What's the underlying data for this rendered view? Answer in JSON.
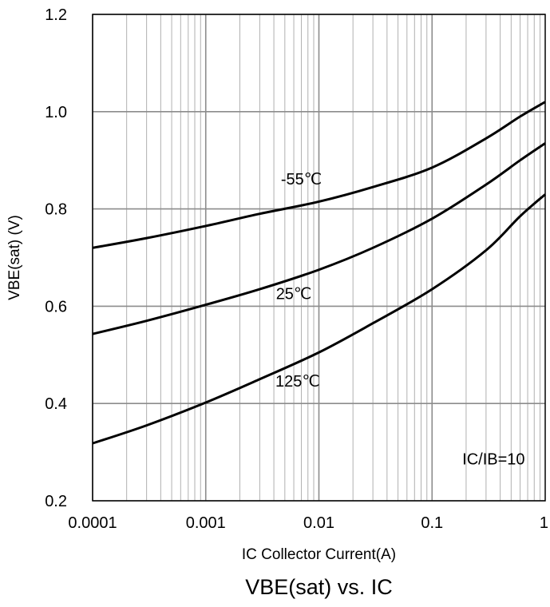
{
  "chart_data": {
    "type": "line",
    "title": "VBE(sat) vs. IC",
    "xlabel": "IC Collector Current(A)",
    "ylabel": "VBE(sat) (V)",
    "x_scale": "log",
    "xlim": [
      0.0001,
      1
    ],
    "ylim": [
      0.2,
      1.2
    ],
    "grid": true,
    "x_ticks": [
      "0.0001",
      "0.001",
      "0.01",
      "0.1",
      "1"
    ],
    "y_ticks": [
      "0.2",
      "0.4",
      "0.6",
      "0.8",
      "1.0",
      "1.2"
    ],
    "series": [
      {
        "name": "-55℃",
        "x": [
          0.0001,
          0.0003,
          0.001,
          0.003,
          0.01,
          0.03,
          0.1,
          0.3,
          0.6,
          1
        ],
        "y": [
          0.72,
          0.74,
          0.765,
          0.79,
          0.815,
          0.845,
          0.885,
          0.945,
          0.99,
          1.02
        ]
      },
      {
        "name": "25℃",
        "x": [
          0.0001,
          0.0003,
          0.001,
          0.003,
          0.01,
          0.03,
          0.1,
          0.3,
          0.6,
          1
        ],
        "y": [
          0.543,
          0.57,
          0.603,
          0.635,
          0.675,
          0.72,
          0.78,
          0.85,
          0.9,
          0.935
        ]
      },
      {
        "name": "125℃",
        "x": [
          0.0001,
          0.0003,
          0.001,
          0.003,
          0.01,
          0.03,
          0.1,
          0.3,
          0.6,
          1
        ],
        "y": [
          0.318,
          0.355,
          0.402,
          0.45,
          0.505,
          0.565,
          0.635,
          0.715,
          0.785,
          0.83
        ]
      }
    ],
    "annotations": [
      {
        "text": "-55℃",
        "x": 0.007,
        "y": 0.85
      },
      {
        "text": "25℃",
        "x": 0.006,
        "y": 0.615
      },
      {
        "text": "125℃",
        "x": 0.0065,
        "y": 0.435
      },
      {
        "text": "IC/IB=10",
        "x": 0.35,
        "y": 0.275
      }
    ]
  }
}
